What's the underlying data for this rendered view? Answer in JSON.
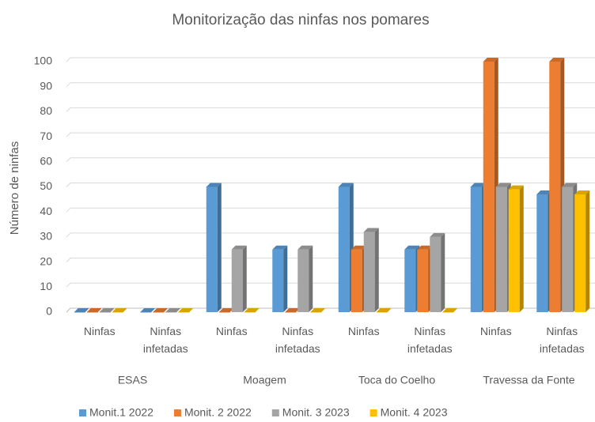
{
  "chart_data": {
    "type": "bar3d",
    "title": "Monitorização das ninfas nos pomares",
    "ylabel": "Número de ninfas",
    "categories": [
      "Ninfas",
      "Ninfas infetadas",
      "Ninfas",
      "Ninfas infetadas",
      "Ninfas",
      "Ninfas infetadas",
      "Ninfas",
      "Ninfas infetadas"
    ],
    "groups": [
      "ESAS",
      "Moagem",
      "Toca do Coelho",
      "Travessa da Fonte"
    ],
    "series": [
      {
        "name": "Monit.1 2022",
        "color": "#5b9bd5",
        "values": [
          0,
          0,
          50,
          25,
          50,
          25,
          50,
          47
        ]
      },
      {
        "name": "Monit. 2 2022",
        "color": "#ed7d31",
        "values": [
          0,
          0,
          0,
          0,
          25,
          25,
          100,
          100
        ]
      },
      {
        "name": "Monit. 3 2023",
        "color": "#a5a5a5",
        "values": [
          0,
          0,
          25,
          25,
          32,
          30,
          50,
          50
        ]
      },
      {
        "name": "Monit. 4 2023",
        "color": "#ffc000",
        "values": [
          0,
          0,
          0,
          0,
          0,
          0,
          49,
          47
        ]
      }
    ],
    "ylim": [
      0,
      100
    ],
    "yticks": [
      0,
      10,
      20,
      30,
      40,
      50,
      60,
      70,
      80,
      90,
      100
    ],
    "grid": true,
    "legend": "bottom"
  }
}
